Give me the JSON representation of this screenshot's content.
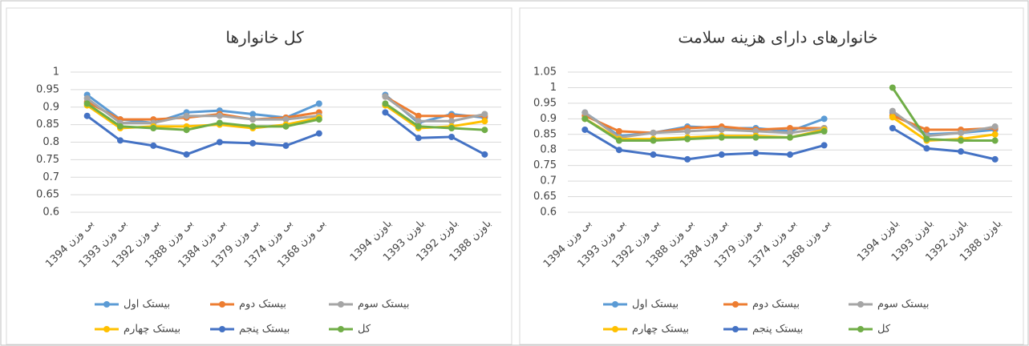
{
  "chart_data": [
    {
      "type": "line",
      "title": "کل خانوارها",
      "categories": [
        "1394 بی وزن",
        "1393 بی وزن",
        "1392 بی وزن",
        "1388 بی وزن",
        "1384 بی وزن",
        "1379 بی وزن",
        "1374 بی وزن",
        "1368 بی وزن",
        null,
        "1394 باوزن",
        "1393 باوزن",
        "1392 باوزن",
        "1388 باوزن"
      ],
      "ylim": [
        0.6,
        1
      ],
      "yticks": [
        0.6,
        0.65,
        0.7,
        0.75,
        0.8,
        0.85,
        0.9,
        0.95,
        1
      ],
      "grid": true,
      "series": [
        {
          "name": "بیستک اول",
          "color": "#5b9bd5",
          "values": [
            0.935,
            0.865,
            0.855,
            0.885,
            0.89,
            0.88,
            0.87,
            0.91,
            null,
            0.935,
            0.855,
            0.88,
            0.87
          ]
        },
        {
          "name": "بیستک دوم",
          "color": "#ed7d31",
          "values": [
            0.915,
            0.865,
            0.865,
            0.87,
            0.88,
            0.865,
            0.87,
            0.885,
            null,
            0.93,
            0.875,
            0.875,
            0.875
          ]
        },
        {
          "name": "بیستک سوم",
          "color": "#a5a5a5",
          "values": [
            0.925,
            0.855,
            0.855,
            0.875,
            0.875,
            0.865,
            0.865,
            0.875,
            null,
            0.93,
            0.86,
            0.86,
            0.88
          ]
        },
        {
          "name": "بیستک چهارم",
          "color": "#ffc000",
          "values": [
            0.905,
            0.84,
            0.845,
            0.845,
            0.85,
            0.84,
            0.85,
            0.87,
            null,
            0.905,
            0.84,
            0.845,
            0.86
          ]
        },
        {
          "name": "بیستک پنجم",
          "color": "#4472c4",
          "values": [
            0.875,
            0.805,
            0.79,
            0.765,
            0.8,
            0.797,
            0.79,
            0.825,
            null,
            0.885,
            0.812,
            0.815,
            0.765
          ]
        },
        {
          "name": "کل",
          "color": "#70ad47",
          "values": [
            0.91,
            0.845,
            0.84,
            0.835,
            0.855,
            0.845,
            0.845,
            0.865,
            null,
            0.91,
            0.845,
            0.84,
            0.835
          ]
        }
      ]
    },
    {
      "type": "line",
      "title": "خانوارهای دارای هزینه سلامت",
      "categories": [
        "1394 بی وزن",
        "1393 بی وزن",
        "1392 بی وزن",
        "1388 بی وزن",
        "1384 بی وزن",
        "1379 بی وزن",
        "1374 بی وزن",
        "1368 بی وزن",
        null,
        "1394 باوزن",
        "1393 باوزن",
        "1392 باوزن",
        "1388 باوزن"
      ],
      "ylim": [
        0.6,
        1.05
      ],
      "yticks": [
        0.6,
        0.65,
        0.7,
        0.75,
        0.8,
        0.85,
        0.9,
        0.95,
        1,
        1.05
      ],
      "grid": true,
      "series": [
        {
          "name": "بیستک اول",
          "color": "#5b9bd5",
          "values": [
            0.92,
            0.845,
            0.855,
            0.875,
            0.87,
            0.87,
            0.86,
            0.9,
            null,
            0.92,
            0.85,
            0.855,
            0.865
          ]
        },
        {
          "name": "بیستک دوم",
          "color": "#ed7d31",
          "values": [
            0.91,
            0.86,
            0.855,
            0.87,
            0.875,
            0.865,
            0.87,
            0.87,
            null,
            0.91,
            0.865,
            0.865,
            0.87
          ]
        },
        {
          "name": "بیستک سوم",
          "color": "#a5a5a5",
          "values": [
            0.92,
            0.84,
            0.855,
            0.86,
            0.865,
            0.86,
            0.855,
            0.87,
            null,
            0.925,
            0.845,
            0.855,
            0.875
          ]
        },
        {
          "name": "بیستک چهارم",
          "color": "#ffc000",
          "values": [
            0.9,
            0.835,
            0.835,
            0.84,
            0.845,
            0.845,
            0.84,
            0.865,
            null,
            0.905,
            0.83,
            0.835,
            0.85
          ]
        },
        {
          "name": "بیستک پنجم",
          "color": "#4472c4",
          "values": [
            0.865,
            0.8,
            0.785,
            0.77,
            0.785,
            0.79,
            0.785,
            0.815,
            null,
            0.87,
            0.805,
            0.795,
            0.77
          ]
        },
        {
          "name": "کل",
          "color": "#70ad47",
          "values": [
            0.9,
            0.83,
            0.83,
            0.835,
            0.84,
            0.84,
            0.84,
            0.86,
            null,
            1.0,
            0.835,
            0.83,
            0.83
          ]
        }
      ]
    }
  ]
}
